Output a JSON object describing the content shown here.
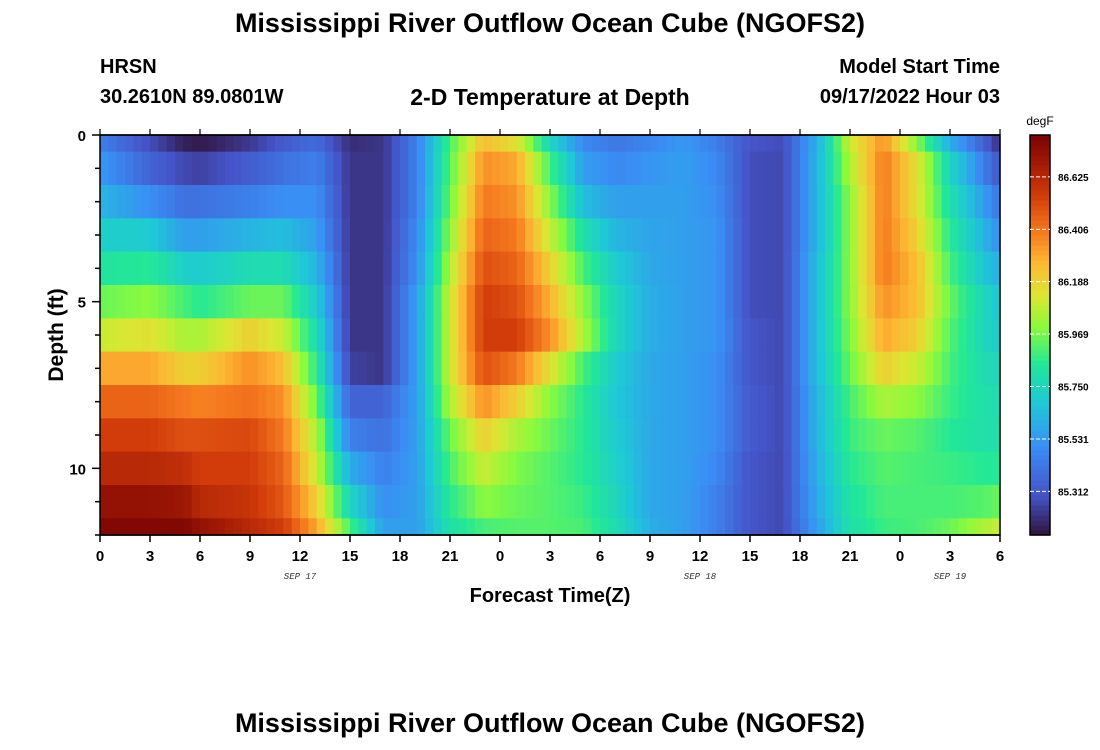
{
  "header": {
    "title": "Mississippi River Outflow Ocean Cube (NGOFS2)",
    "station": "HRSN",
    "coords": "30.2610N  89.0801W",
    "subtitle": "2-D Temperature at Depth",
    "model_start_label": "Model Start Time",
    "model_start_value": "09/17/2022 Hour 03"
  },
  "footer": {
    "title": "Mississippi River Outflow Ocean Cube (NGOFS2)"
  },
  "chart_data": {
    "type": "heatmap",
    "title": "2-D Temperature at Depth",
    "xlabel": "Forecast Time(Z)",
    "ylabel": "Depth (ft)",
    "xlim": [
      0,
      54
    ],
    "ylim": [
      12,
      0
    ],
    "x_ticks": [
      0,
      3,
      6,
      9,
      12,
      15,
      18,
      21,
      24,
      27,
      30,
      33,
      36,
      39,
      42,
      45,
      48,
      51,
      54
    ],
    "x_tick_labels": [
      "0",
      "3",
      "6",
      "9",
      "12",
      "15",
      "18",
      "21",
      "0",
      "3",
      "6",
      "9",
      "12",
      "15",
      "18",
      "21",
      "0",
      "3",
      "6"
    ],
    "y_ticks": [
      0,
      5,
      10
    ],
    "y_tick_labels": [
      "0",
      "5",
      "10"
    ],
    "date_labels": [
      {
        "x": 12,
        "text": "SEP 17"
      },
      {
        "x": 36,
        "text": "SEP 18"
      },
      {
        "x": 51,
        "text": "SEP 19"
      }
    ],
    "colorbar": {
      "unit": "degF",
      "min": 85.13,
      "max": 86.8,
      "tick_values": [
        86.625,
        86.406,
        86.188,
        85.969,
        85.75,
        85.531,
        85.312
      ],
      "tick_labels": [
        "86.625",
        "86.406",
        "86.188",
        "85.969",
        "85.750",
        "85.531",
        "85.312"
      ]
    },
    "depth_layers_ft": [
      0,
      1,
      2,
      3,
      4,
      5,
      6,
      7,
      8,
      9,
      10,
      11,
      12
    ],
    "time_keyframes_hr": [
      0,
      3,
      5,
      6,
      9,
      11,
      13,
      15,
      17,
      19,
      21,
      23,
      25,
      27,
      29,
      31,
      33,
      35,
      37,
      39,
      41,
      43,
      45,
      47,
      49,
      51,
      53,
      54
    ],
    "temperature_keyframes_degF": [
      [
        85.45,
        85.28,
        85.17,
        85.15,
        85.23,
        85.32,
        85.38,
        85.2,
        85.22,
        85.45,
        85.9,
        86.25,
        86.15,
        85.75,
        85.48,
        85.42,
        85.47,
        85.53,
        85.44,
        85.3,
        85.28,
        85.6,
        86.1,
        86.35,
        86.0,
        85.6,
        85.35,
        85.2
      ],
      [
        85.53,
        85.35,
        85.27,
        85.25,
        85.33,
        85.4,
        85.45,
        85.22,
        85.22,
        85.45,
        85.92,
        86.35,
        86.3,
        85.9,
        85.55,
        85.48,
        85.52,
        85.55,
        85.48,
        85.28,
        85.27,
        85.62,
        86.05,
        86.4,
        86.15,
        85.75,
        85.45,
        85.3
      ],
      [
        85.62,
        85.5,
        85.4,
        85.4,
        85.45,
        85.5,
        85.5,
        85.22,
        85.22,
        85.45,
        85.95,
        86.4,
        86.35,
        86.0,
        85.65,
        85.55,
        85.55,
        85.55,
        85.5,
        85.28,
        85.27,
        85.62,
        86.0,
        86.4,
        86.15,
        85.8,
        85.55,
        85.4
      ],
      [
        85.72,
        85.7,
        85.55,
        85.55,
        85.62,
        85.65,
        85.55,
        85.22,
        85.22,
        85.48,
        86.0,
        86.45,
        86.4,
        86.1,
        85.8,
        85.62,
        85.57,
        85.55,
        85.52,
        85.28,
        85.27,
        85.62,
        86.0,
        86.4,
        86.2,
        85.85,
        85.62,
        85.5
      ],
      [
        85.82,
        85.85,
        85.72,
        85.7,
        85.78,
        85.78,
        85.62,
        85.22,
        85.22,
        85.5,
        86.05,
        86.5,
        86.45,
        86.2,
        85.9,
        85.7,
        85.58,
        85.55,
        85.52,
        85.28,
        85.27,
        85.65,
        86.0,
        86.4,
        86.25,
        85.9,
        85.68,
        85.6
      ],
      [
        85.95,
        86.0,
        85.9,
        85.85,
        85.95,
        85.95,
        85.7,
        85.22,
        85.22,
        85.55,
        86.1,
        86.55,
        86.5,
        86.28,
        86.0,
        85.75,
        85.6,
        85.55,
        85.52,
        85.28,
        85.27,
        85.65,
        86.0,
        86.35,
        86.25,
        85.95,
        85.75,
        85.68
      ],
      [
        86.1,
        86.15,
        86.05,
        86.05,
        86.2,
        86.1,
        85.78,
        85.22,
        85.22,
        85.55,
        86.1,
        86.55,
        86.55,
        86.35,
        86.05,
        85.75,
        85.6,
        85.55,
        85.52,
        85.3,
        85.27,
        85.65,
        85.98,
        86.3,
        86.2,
        85.92,
        85.75,
        85.7
      ],
      [
        86.3,
        86.3,
        86.2,
        86.2,
        86.35,
        86.25,
        85.85,
        85.25,
        85.22,
        85.55,
        86.1,
        86.5,
        86.4,
        86.15,
        85.9,
        85.7,
        85.58,
        85.55,
        85.5,
        85.3,
        85.27,
        85.65,
        85.95,
        86.2,
        86.1,
        85.9,
        85.78,
        85.75
      ],
      [
        86.45,
        86.45,
        86.4,
        86.38,
        86.42,
        86.35,
        85.95,
        85.35,
        85.35,
        85.55,
        86.05,
        86.35,
        86.2,
        86.0,
        85.85,
        85.68,
        85.58,
        85.55,
        85.5,
        85.32,
        85.27,
        85.62,
        85.9,
        86.05,
        86.0,
        85.88,
        85.8,
        85.78
      ],
      [
        86.55,
        86.55,
        86.5,
        86.5,
        86.52,
        86.4,
        86.05,
        85.45,
        85.4,
        85.55,
        85.95,
        86.2,
        86.05,
        85.95,
        85.85,
        85.7,
        85.58,
        85.55,
        85.5,
        85.32,
        85.27,
        85.62,
        85.88,
        85.95,
        85.92,
        85.85,
        85.8,
        85.8
      ],
      [
        86.62,
        86.62,
        86.6,
        86.55,
        86.55,
        86.45,
        86.1,
        85.6,
        85.45,
        85.55,
        85.9,
        86.1,
        85.98,
        85.92,
        85.85,
        85.72,
        85.58,
        85.55,
        85.48,
        85.3,
        85.27,
        85.6,
        85.85,
        85.92,
        85.9,
        85.88,
        85.85,
        85.85
      ],
      [
        86.72,
        86.72,
        86.7,
        86.62,
        86.58,
        86.48,
        86.2,
        85.75,
        85.5,
        85.55,
        85.85,
        86.0,
        85.95,
        85.92,
        85.88,
        85.75,
        85.58,
        85.55,
        85.45,
        85.3,
        85.27,
        85.58,
        85.82,
        85.9,
        85.9,
        85.9,
        85.92,
        85.95
      ],
      [
        86.78,
        86.78,
        86.78,
        86.72,
        86.62,
        86.55,
        86.3,
        85.9,
        85.55,
        85.55,
        85.8,
        85.9,
        85.92,
        85.92,
        85.9,
        85.78,
        85.6,
        85.55,
        85.45,
        85.3,
        85.27,
        85.55,
        85.8,
        85.88,
        85.9,
        85.95,
        86.05,
        86.1
      ]
    ]
  }
}
